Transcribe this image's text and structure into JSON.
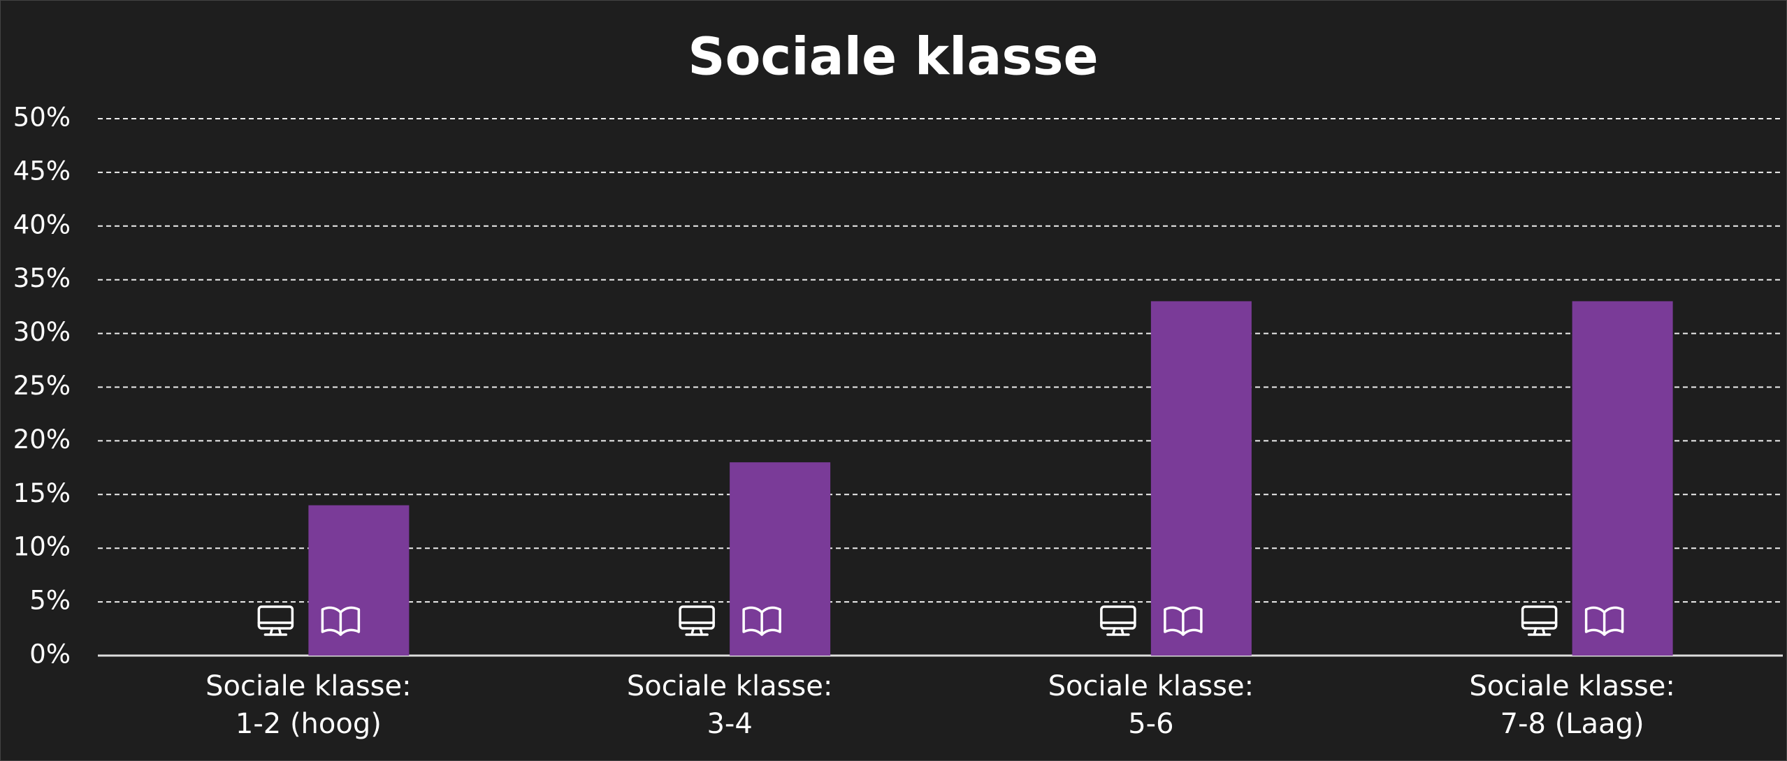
{
  "chart_data": {
    "type": "bar",
    "title": "Sociale klasse",
    "categories": [
      [
        "Sociale klasse:",
        "1-2 (hoog)"
      ],
      [
        "Sociale klasse:",
        "3-4"
      ],
      [
        "Sociale klasse:",
        "5-6"
      ],
      [
        "Sociale klasse:",
        "7-8 (Laag)"
      ]
    ],
    "values": [
      14,
      18,
      33,
      33
    ],
    "color": "#7a3b98",
    "ylim": [
      0,
      50
    ],
    "yticks": [
      {
        "value": 0,
        "label": "0%"
      },
      {
        "value": 5,
        "label": "5%"
      },
      {
        "value": 10,
        "label": "10%"
      },
      {
        "value": 15,
        "label": "15%"
      },
      {
        "value": 20,
        "label": "20%"
      },
      {
        "value": 25,
        "label": "25%"
      },
      {
        "value": 30,
        "label": "30%"
      },
      {
        "value": 35,
        "label": "35%"
      },
      {
        "value": 40,
        "label": "40%"
      },
      {
        "value": 45,
        "label": "45%"
      },
      {
        "value": 50,
        "label": "50%"
      }
    ],
    "grid": true
  }
}
